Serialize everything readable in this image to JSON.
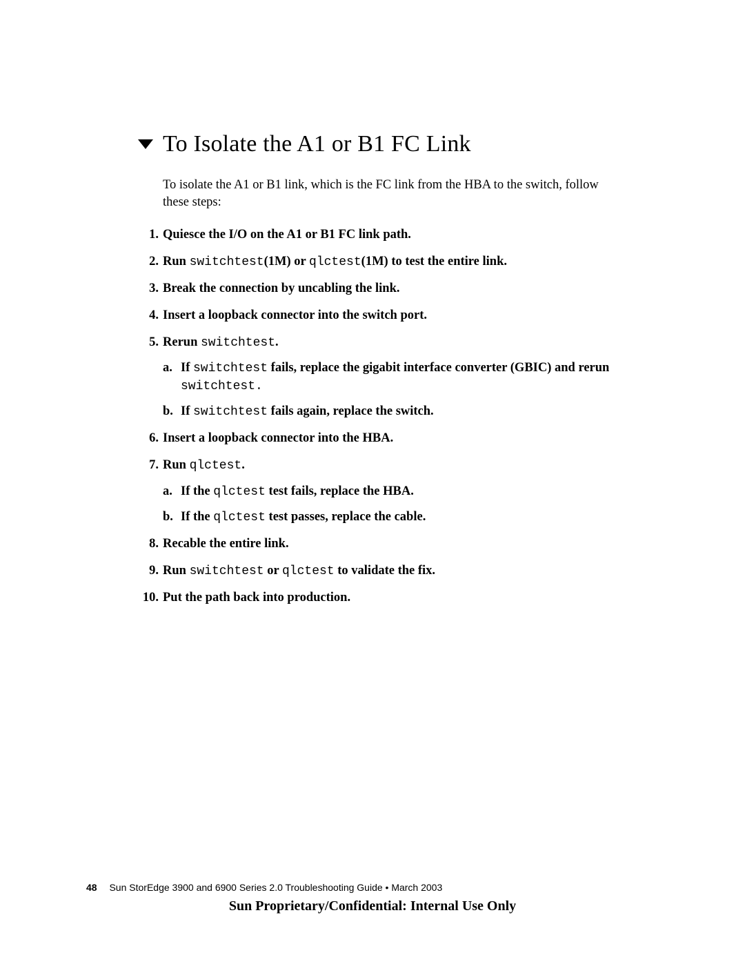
{
  "heading": "To Isolate the A1 or B1 FC Link",
  "intro": "To isolate the A1 or B1 link, which is the FC link from the HBA to the switch, follow these steps:",
  "steps": [
    {
      "parts": [
        {
          "t": "Quiesce the I/O on the A1 or B1 FC link path.",
          "style": "bold"
        }
      ]
    },
    {
      "parts": [
        {
          "t": "Run ",
          "style": "bold"
        },
        {
          "t": "switchtest",
          "style": "mono"
        },
        {
          "t": "(1M) or ",
          "style": "bold"
        },
        {
          "t": "qlctest",
          "style": "mono"
        },
        {
          "t": "(1M) to test the entire link.",
          "style": "bold"
        }
      ]
    },
    {
      "parts": [
        {
          "t": "Break the connection by uncabling the link.",
          "style": "bold"
        }
      ]
    },
    {
      "parts": [
        {
          "t": "Insert a loopback connector into the switch port.",
          "style": "bold"
        }
      ]
    },
    {
      "parts": [
        {
          "t": "Rerun ",
          "style": "bold"
        },
        {
          "t": "switchtest",
          "style": "mono"
        },
        {
          "t": ".",
          "style": "bold"
        }
      ],
      "sub": [
        {
          "letter": "a.",
          "parts": [
            {
              "t": "If ",
              "style": "bold"
            },
            {
              "t": "switchtest",
              "style": "mono"
            },
            {
              "t": " fails, replace the gigabit interface converter (GBIC) and rerun ",
              "style": "bold"
            },
            {
              "t": "switchtest.",
              "style": "mono"
            }
          ]
        },
        {
          "letter": "b.",
          "parts": [
            {
              "t": "If ",
              "style": "bold"
            },
            {
              "t": "switchtest",
              "style": "mono"
            },
            {
              "t": " fails again, replace the switch.",
              "style": "bold"
            }
          ]
        }
      ]
    },
    {
      "parts": [
        {
          "t": "Insert a loopback connector into the HBA.",
          "style": "bold"
        }
      ]
    },
    {
      "parts": [
        {
          "t": "Run ",
          "style": "bold"
        },
        {
          "t": "qlctest",
          "style": "mono"
        },
        {
          "t": ".",
          "style": "bold"
        }
      ],
      "sub": [
        {
          "letter": "a.",
          "parts": [
            {
              "t": "If the ",
              "style": "bold"
            },
            {
              "t": "qlctest",
              "style": "mono"
            },
            {
              "t": " test fails, replace the HBA.",
              "style": "bold"
            }
          ]
        },
        {
          "letter": "b.",
          "parts": [
            {
              "t": "If the ",
              "style": "bold"
            },
            {
              "t": "qlctest",
              "style": "mono"
            },
            {
              "t": " test passes, replace the cable.",
              "style": "bold"
            }
          ]
        }
      ]
    },
    {
      "parts": [
        {
          "t": "Recable the entire link.",
          "style": "bold"
        }
      ]
    },
    {
      "parts": [
        {
          "t": "Run ",
          "style": "bold"
        },
        {
          "t": "switchtest",
          "style": "mono"
        },
        {
          "t": " or ",
          "style": "bold"
        },
        {
          "t": "qlctest",
          "style": "mono"
        },
        {
          "t": " to validate the fix.",
          "style": "bold"
        }
      ]
    },
    {
      "parts": [
        {
          "t": "Put the path back into production.",
          "style": "bold"
        }
      ]
    }
  ],
  "footer": {
    "page_number": "48",
    "doc_title": "Sun StorEdge 3900 and 6900 Series 2.0 Troubleshooting Guide  •  March 2003",
    "confidential": "Sun Proprietary/Confidential: Internal Use Only"
  },
  "icon": {
    "fill": "#000000",
    "width": 22,
    "height": 14
  }
}
